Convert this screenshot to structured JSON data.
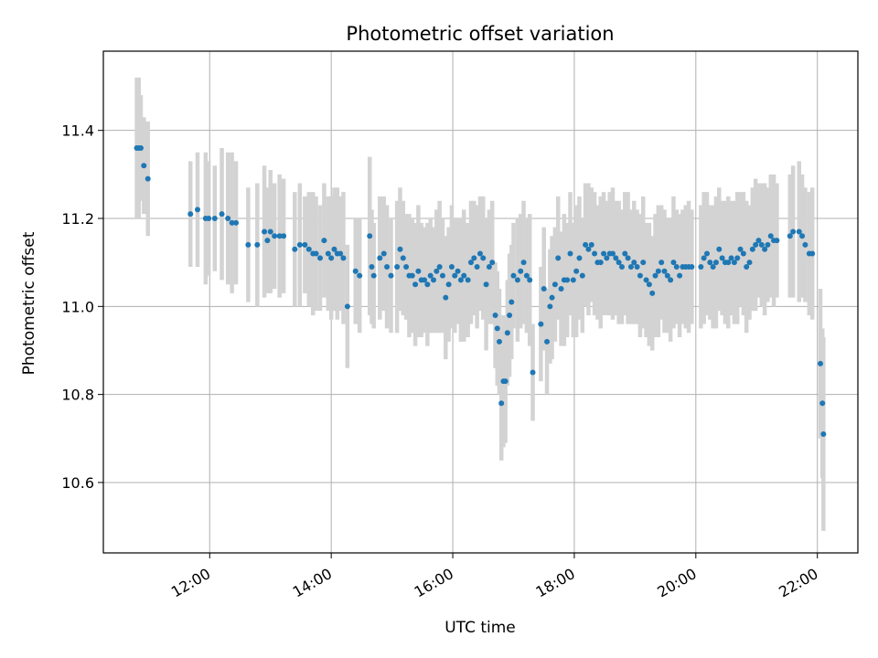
{
  "chart_data": {
    "type": "scatter",
    "title": "Photometric offset variation",
    "xlabel": "UTC time",
    "ylabel": "Photometric offset",
    "xlim": [
      "10:15",
      "22:40"
    ],
    "ylim": [
      10.44,
      11.58
    ],
    "x_ticks": [
      "12:00",
      "14:00",
      "16:00",
      "18:00",
      "20:00",
      "22:00"
    ],
    "y_ticks": [
      10.6,
      10.8,
      11.0,
      11.2,
      11.4
    ],
    "y_tick_labels": [
      "10.6",
      "10.8",
      "11.0",
      "11.2",
      "11.4"
    ],
    "grid": true,
    "colors": {
      "points": "#1f77b4",
      "error_bars": "#d3d3d3",
      "grid": "#b0b0b0"
    },
    "series": [
      {
        "points": [
          [
            "10:48",
            11.36,
            0.16
          ],
          [
            "10:50",
            11.36,
            0.16
          ],
          [
            "10:52",
            11.36,
            0.12
          ],
          [
            "10:55",
            11.32,
            0.11
          ],
          [
            "10:59",
            11.29,
            0.13
          ],
          [
            "11:41",
            11.21,
            0.12
          ],
          [
            "11:48",
            11.22,
            0.13
          ],
          [
            "11:56",
            11.2,
            0.15
          ],
          [
            "11:59",
            11.2,
            0.13
          ],
          [
            "12:05",
            11.2,
            0.12
          ],
          [
            "12:12",
            11.21,
            0.15
          ],
          [
            "12:18",
            11.2,
            0.15
          ],
          [
            "12:22",
            11.19,
            0.16
          ],
          [
            "12:26",
            11.19,
            0.14
          ],
          [
            "12:38",
            11.14,
            0.13
          ],
          [
            "12:47",
            11.14,
            0.14
          ],
          [
            "12:54",
            11.17,
            0.15
          ],
          [
            "12:57",
            11.15,
            0.12
          ],
          [
            "13:00",
            11.17,
            0.14
          ],
          [
            "13:04",
            11.16,
            0.12
          ],
          [
            "13:09",
            11.16,
            0.14
          ],
          [
            "13:13",
            11.16,
            0.13
          ],
          [
            "13:24",
            11.13,
            0.13
          ],
          [
            "13:29",
            11.14,
            0.14
          ],
          [
            "13:34",
            11.14,
            0.11
          ],
          [
            "13:38",
            11.13,
            0.13
          ],
          [
            "13:42",
            11.12,
            0.14
          ],
          [
            "13:45",
            11.12,
            0.13
          ],
          [
            "13:49",
            11.11,
            0.12
          ],
          [
            "13:53",
            11.15,
            0.13
          ],
          [
            "13:57",
            11.12,
            0.13
          ],
          [
            "14:00",
            11.11,
            0.14
          ],
          [
            "14:03",
            11.13,
            0.14
          ],
          [
            "14:06",
            11.12,
            0.15
          ],
          [
            "14:09",
            11.12,
            0.13
          ],
          [
            "14:12",
            11.11,
            0.15
          ],
          [
            "14:16",
            11.0,
            0.14
          ],
          [
            "14:24",
            11.08,
            0.12
          ],
          [
            "14:28",
            11.07,
            0.13
          ],
          [
            "14:38",
            11.16,
            0.18
          ],
          [
            "14:40",
            11.09,
            0.13
          ],
          [
            "14:42",
            11.07,
            0.12
          ],
          [
            "14:48",
            11.11,
            0.14
          ],
          [
            "14:52",
            11.12,
            0.13
          ],
          [
            "14:55",
            11.09,
            0.14
          ],
          [
            "14:59",
            11.07,
            0.13
          ],
          [
            "15:05",
            11.09,
            0.15
          ],
          [
            "15:08",
            11.13,
            0.14
          ],
          [
            "15:11",
            11.11,
            0.13
          ],
          [
            "15:14",
            11.09,
            0.12
          ],
          [
            "15:17",
            11.07,
            0.14
          ],
          [
            "15:20",
            11.07,
            0.13
          ],
          [
            "15:23",
            11.05,
            0.14
          ],
          [
            "15:26",
            11.08,
            0.15
          ],
          [
            "15:29",
            11.06,
            0.13
          ],
          [
            "15:32",
            11.06,
            0.12
          ],
          [
            "15:35",
            11.05,
            0.14
          ],
          [
            "15:38",
            11.07,
            0.13
          ],
          [
            "15:41",
            11.06,
            0.12
          ],
          [
            "15:44",
            11.08,
            0.14
          ],
          [
            "15:47",
            11.09,
            0.15
          ],
          [
            "15:50",
            11.07,
            0.13
          ],
          [
            "15:53",
            11.02,
            0.14
          ],
          [
            "15:56",
            11.05,
            0.13
          ],
          [
            "15:59",
            11.09,
            0.14
          ],
          [
            "16:02",
            11.07,
            0.13
          ],
          [
            "16:05",
            11.08,
            0.12
          ],
          [
            "16:08",
            11.06,
            0.14
          ],
          [
            "16:11",
            11.07,
            0.15
          ],
          [
            "16:15",
            11.06,
            0.13
          ],
          [
            "16:18",
            11.1,
            0.14
          ],
          [
            "16:21",
            11.11,
            0.13
          ],
          [
            "16:24",
            11.09,
            0.14
          ],
          [
            "16:27",
            11.12,
            0.13
          ],
          [
            "16:30",
            11.11,
            0.14
          ],
          [
            "16:33",
            11.05,
            0.15
          ],
          [
            "16:36",
            11.09,
            0.13
          ],
          [
            "16:39",
            11.1,
            0.14
          ],
          [
            "16:42",
            10.98,
            0.12
          ],
          [
            "16:44",
            10.95,
            0.13
          ],
          [
            "16:46",
            10.92,
            0.12
          ],
          [
            "16:48",
            10.78,
            0.13
          ],
          [
            "16:50",
            10.83,
            0.15
          ],
          [
            "16:52",
            10.83,
            0.14
          ],
          [
            "16:54",
            10.94,
            0.12
          ],
          [
            "16:56",
            10.98,
            0.14
          ],
          [
            "16:58",
            11.01,
            0.13
          ],
          [
            "17:00",
            11.07,
            0.12
          ],
          [
            "17:04",
            11.06,
            0.14
          ],
          [
            "17:07",
            11.08,
            0.13
          ],
          [
            "17:10",
            11.1,
            0.14
          ],
          [
            "17:13",
            11.07,
            0.13
          ],
          [
            "17:16",
            11.06,
            0.15
          ],
          [
            "17:19",
            10.85,
            0.11
          ],
          [
            "17:27",
            10.96,
            0.13
          ],
          [
            "17:30",
            11.04,
            0.14
          ],
          [
            "17:33",
            10.92,
            0.12
          ],
          [
            "17:36",
            11.0,
            0.13
          ],
          [
            "17:38",
            11.02,
            0.14
          ],
          [
            "17:41",
            11.05,
            0.13
          ],
          [
            "17:44",
            11.11,
            0.14
          ],
          [
            "17:47",
            11.04,
            0.13
          ],
          [
            "17:50",
            11.06,
            0.15
          ],
          [
            "17:53",
            11.06,
            0.13
          ],
          [
            "17:56",
            11.12,
            0.14
          ],
          [
            "17:59",
            11.06,
            0.13
          ],
          [
            "18:02",
            11.08,
            0.15
          ],
          [
            "18:05",
            11.11,
            0.14
          ],
          [
            "18:08",
            11.07,
            0.13
          ],
          [
            "18:11",
            11.14,
            0.14
          ],
          [
            "18:14",
            11.13,
            0.15
          ],
          [
            "18:17",
            11.14,
            0.13
          ],
          [
            "18:20",
            11.12,
            0.14
          ],
          [
            "18:23",
            11.1,
            0.13
          ],
          [
            "18:26",
            11.1,
            0.15
          ],
          [
            "18:29",
            11.12,
            0.14
          ],
          [
            "18:32",
            11.11,
            0.13
          ],
          [
            "18:35",
            11.12,
            0.14
          ],
          [
            "18:38",
            11.12,
            0.15
          ],
          [
            "18:41",
            11.11,
            0.13
          ],
          [
            "18:44",
            11.1,
            0.14
          ],
          [
            "18:47",
            11.09,
            0.13
          ],
          [
            "18:50",
            11.12,
            0.14
          ],
          [
            "18:53",
            11.11,
            0.15
          ],
          [
            "18:56",
            11.09,
            0.13
          ],
          [
            "18:59",
            11.1,
            0.14
          ],
          [
            "19:02",
            11.09,
            0.13
          ],
          [
            "19:05",
            11.07,
            0.14
          ],
          [
            "19:08",
            11.1,
            0.15
          ],
          [
            "19:11",
            11.06,
            0.13
          ],
          [
            "19:14",
            11.05,
            0.14
          ],
          [
            "19:17",
            11.03,
            0.13
          ],
          [
            "19:20",
            11.07,
            0.14
          ],
          [
            "19:23",
            11.08,
            0.15
          ],
          [
            "19:26",
            11.1,
            0.13
          ],
          [
            "19:29",
            11.08,
            0.14
          ],
          [
            "19:32",
            11.07,
            0.13
          ],
          [
            "19:35",
            11.06,
            0.14
          ],
          [
            "19:38",
            11.1,
            0.15
          ],
          [
            "19:41",
            11.09,
            0.13
          ],
          [
            "19:44",
            11.07,
            0.14
          ],
          [
            "19:47",
            11.09,
            0.13
          ],
          [
            "19:50",
            11.09,
            0.14
          ],
          [
            "19:53",
            11.09,
            0.15
          ],
          [
            "19:56",
            11.09,
            0.13
          ],
          [
            "20:05",
            11.09,
            0.14
          ],
          [
            "20:08",
            11.11,
            0.15
          ],
          [
            "20:11",
            11.12,
            0.14
          ],
          [
            "20:14",
            11.1,
            0.13
          ],
          [
            "20:17",
            11.09,
            0.14
          ],
          [
            "20:20",
            11.1,
            0.15
          ],
          [
            "20:23",
            11.13,
            0.14
          ],
          [
            "20:26",
            11.11,
            0.13
          ],
          [
            "20:29",
            11.1,
            0.14
          ],
          [
            "20:32",
            11.1,
            0.15
          ],
          [
            "20:35",
            11.11,
            0.13
          ],
          [
            "20:38",
            11.1,
            0.14
          ],
          [
            "20:41",
            11.11,
            0.15
          ],
          [
            "20:44",
            11.13,
            0.13
          ],
          [
            "20:47",
            11.12,
            0.14
          ],
          [
            "20:50",
            11.09,
            0.15
          ],
          [
            "20:53",
            11.1,
            0.13
          ],
          [
            "20:56",
            11.13,
            0.14
          ],
          [
            "20:59",
            11.14,
            0.15
          ],
          [
            "21:02",
            11.15,
            0.13
          ],
          [
            "21:05",
            11.14,
            0.14
          ],
          [
            "21:08",
            11.13,
            0.15
          ],
          [
            "21:11",
            11.14,
            0.13
          ],
          [
            "21:14",
            11.16,
            0.14
          ],
          [
            "21:17",
            11.15,
            0.15
          ],
          [
            "21:20",
            11.15,
            0.13
          ],
          [
            "21:33",
            11.16,
            0.14
          ],
          [
            "21:36",
            11.17,
            0.15
          ],
          [
            "21:42",
            11.17,
            0.16
          ],
          [
            "21:45",
            11.16,
            0.14
          ],
          [
            "21:48",
            11.14,
            0.13
          ],
          [
            "21:52",
            11.12,
            0.14
          ],
          [
            "21:55",
            11.12,
            0.15
          ],
          [
            "22:03",
            10.87,
            0.17
          ],
          [
            "22:05",
            10.78,
            0.17
          ],
          [
            "22:06",
            10.71,
            0.22
          ]
        ]
      }
    ]
  }
}
